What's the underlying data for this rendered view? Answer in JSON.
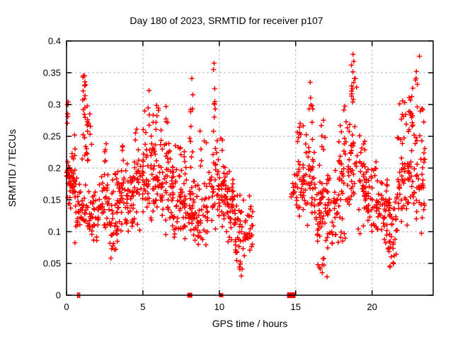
{
  "window": {
    "title": "Day 180 of 2023, SRMTID for receiver p107"
  },
  "chart_data": {
    "type": "scatter",
    "title": "Day 180 of 2023, SRMTID for receiver p107",
    "xlabel": "GPS time / hours",
    "ylabel": "SRMTID / TECUs",
    "xlim": [
      0,
      24
    ],
    "ylim": [
      0,
      0.4
    ],
    "xticks": [
      0,
      5,
      10,
      15,
      20
    ],
    "yticks": [
      0,
      0.05,
      0.1,
      0.15,
      0.2,
      0.25,
      0.3,
      0.35,
      0.4
    ],
    "grid": true,
    "legend": false,
    "marker": "plus",
    "marker_half_size": 3.5,
    "marker_stroke": 1.5,
    "colors": {
      "marker": "#ff0000",
      "grid": "#b3b3b3",
      "axis": "#000000",
      "text": "#000000",
      "background": "#ffffff"
    },
    "seed": 20230180,
    "points": [
      [
        8.2,
        0.341
      ],
      [
        9.62,
        0.355
      ],
      [
        9.66,
        0.365
      ],
      [
        9.7,
        0.325
      ],
      [
        5.4,
        0.322
      ],
      [
        15.95,
        0.335
      ],
      [
        17.05,
        0.029
      ],
      [
        18.75,
        0.379
      ],
      [
        18.8,
        0.368
      ],
      [
        18.65,
        0.362
      ],
      [
        23.1,
        0.376
      ],
      [
        22.9,
        0.352
      ],
      [
        0.05,
        0.3
      ],
      [
        0.08,
        0.285
      ],
      [
        16.55,
        0.044
      ]
    ],
    "clusters": [
      [
        0.0,
        0.25,
        0.14,
        0.23,
        22,
        "t"
      ],
      [
        0.02,
        0.15,
        0.26,
        0.305,
        5,
        "u"
      ],
      [
        0.2,
        0.7,
        0.13,
        0.22,
        26,
        "t"
      ],
      [
        0.55,
        0.95,
        0.07,
        0.2,
        20,
        "t"
      ],
      [
        0.3,
        0.6,
        0.21,
        0.255,
        6,
        "u"
      ],
      [
        1.05,
        1.25,
        0.295,
        0.347,
        12,
        "u"
      ],
      [
        1.0,
        1.45,
        0.18,
        0.295,
        16,
        "t"
      ],
      [
        0.95,
        1.6,
        0.095,
        0.185,
        24,
        "t"
      ],
      [
        1.35,
        1.65,
        0.235,
        0.305,
        8,
        "u"
      ],
      [
        1.5,
        2.1,
        0.065,
        0.175,
        28,
        "t"
      ],
      [
        2.0,
        2.8,
        0.085,
        0.195,
        36,
        "t"
      ],
      [
        2.2,
        2.7,
        0.195,
        0.24,
        5,
        "u"
      ],
      [
        2.8,
        3.35,
        0.055,
        0.175,
        30,
        "t"
      ],
      [
        2.9,
        3.3,
        0.18,
        0.21,
        4,
        "u"
      ],
      [
        3.3,
        3.85,
        0.09,
        0.205,
        34,
        "t"
      ],
      [
        3.5,
        3.8,
        0.21,
        0.245,
        4,
        "u"
      ],
      [
        3.85,
        4.35,
        0.085,
        0.215,
        34,
        "t"
      ],
      [
        4.35,
        4.85,
        0.1,
        0.235,
        30,
        "t"
      ],
      [
        4.5,
        4.8,
        0.24,
        0.27,
        3,
        "u"
      ],
      [
        4.85,
        5.45,
        0.115,
        0.25,
        34,
        "t"
      ],
      [
        5.0,
        5.45,
        0.25,
        0.31,
        6,
        "u"
      ],
      [
        5.5,
        6.2,
        0.1,
        0.27,
        44,
        "t"
      ],
      [
        5.55,
        6.1,
        0.26,
        0.305,
        8,
        "u"
      ],
      [
        6.2,
        6.85,
        0.09,
        0.26,
        40,
        "t"
      ],
      [
        6.3,
        6.7,
        0.26,
        0.3,
        4,
        "u"
      ],
      [
        6.85,
        7.35,
        0.075,
        0.24,
        36,
        "t"
      ],
      [
        7.35,
        7.85,
        0.075,
        0.21,
        38,
        "t"
      ],
      [
        7.4,
        7.8,
        0.21,
        0.25,
        6,
        "u"
      ],
      [
        7.9,
        8.4,
        0.075,
        0.19,
        34,
        "t"
      ],
      [
        8.0,
        8.35,
        0.19,
        0.25,
        5,
        "u"
      ],
      [
        8.05,
        8.3,
        0.265,
        0.32,
        5,
        "u"
      ],
      [
        8.4,
        9.25,
        0.06,
        0.19,
        42,
        "t"
      ],
      [
        8.5,
        9.2,
        0.19,
        0.26,
        6,
        "u"
      ],
      [
        9.3,
        9.95,
        0.1,
        0.25,
        34,
        "t"
      ],
      [
        9.55,
        9.8,
        0.245,
        0.305,
        6,
        "u"
      ],
      [
        9.95,
        10.45,
        0.09,
        0.225,
        36,
        "t"
      ],
      [
        10.0,
        10.3,
        0.225,
        0.25,
        3,
        "u"
      ],
      [
        10.45,
        11.05,
        0.08,
        0.2,
        40,
        "t"
      ],
      [
        11.0,
        11.6,
        0.05,
        0.16,
        36,
        "t"
      ],
      [
        11.1,
        11.5,
        0.03,
        0.055,
        5,
        "u"
      ],
      [
        11.6,
        12.25,
        0.055,
        0.135,
        26,
        "t"
      ],
      [
        11.9,
        12.2,
        0.13,
        0.165,
        4,
        "u"
      ],
      [
        14.7,
        15.05,
        0.13,
        0.205,
        12,
        "t"
      ],
      [
        15.05,
        15.6,
        0.1,
        0.22,
        30,
        "t"
      ],
      [
        15.1,
        15.55,
        0.24,
        0.295,
        8,
        "u"
      ],
      [
        15.6,
        16.25,
        0.09,
        0.27,
        38,
        "t"
      ],
      [
        15.8,
        16.15,
        0.27,
        0.315,
        6,
        "u"
      ],
      [
        16.25,
        17.0,
        0.06,
        0.22,
        44,
        "t"
      ],
      [
        16.35,
        16.95,
        0.035,
        0.06,
        7,
        "u"
      ],
      [
        16.6,
        17.0,
        0.22,
        0.3,
        6,
        "u"
      ],
      [
        17.0,
        17.7,
        0.06,
        0.22,
        40,
        "t"
      ],
      [
        17.7,
        18.4,
        0.08,
        0.28,
        40,
        "t"
      ],
      [
        17.85,
        18.3,
        0.26,
        0.3,
        4,
        "u"
      ],
      [
        18.4,
        19.05,
        0.12,
        0.3,
        36,
        "t"
      ],
      [
        18.55,
        19.0,
        0.3,
        0.355,
        12,
        "u"
      ],
      [
        19.05,
        19.6,
        0.09,
        0.27,
        34,
        "t"
      ],
      [
        19.6,
        20.3,
        0.08,
        0.22,
        40,
        "t"
      ],
      [
        20.3,
        21.0,
        0.07,
        0.2,
        40,
        "t"
      ],
      [
        21.0,
        21.6,
        0.055,
        0.18,
        34,
        "t"
      ],
      [
        21.15,
        21.5,
        0.04,
        0.065,
        5,
        "u"
      ],
      [
        21.6,
        22.3,
        0.08,
        0.26,
        40,
        "t"
      ],
      [
        21.8,
        22.3,
        0.26,
        0.31,
        8,
        "u"
      ],
      [
        22.3,
        23.05,
        0.1,
        0.3,
        44,
        "t"
      ],
      [
        22.4,
        23.0,
        0.28,
        0.345,
        12,
        "u"
      ],
      [
        23.05,
        23.45,
        0.085,
        0.27,
        26,
        "t"
      ],
      [
        23.1,
        23.4,
        0.27,
        0.3,
        4,
        "u"
      ]
    ],
    "baseline_markers": {
      "squares": [
        {
          "h": 8.07,
          "size": 7
        },
        {
          "h": 10.12,
          "size": 6
        },
        {
          "h": 14.62,
          "size": 8
        },
        {
          "h": 14.8,
          "size": 8
        }
      ],
      "ticks": [
        {
          "h": 0.73
        },
        {
          "h": 0.85
        }
      ]
    }
  }
}
